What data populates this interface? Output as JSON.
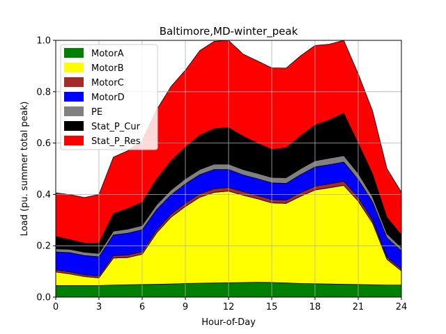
{
  "chart_data": {
    "type": "area",
    "stacked": true,
    "title": "Baltimore,MD-winter_peak",
    "xlabel": "Hour-of-Day",
    "ylabel": "Load (pu. summer total peak)",
    "xlim": [
      0,
      24
    ],
    "ylim": [
      0,
      1.0
    ],
    "xticks": [
      0,
      3,
      6,
      9,
      12,
      15,
      18,
      21,
      24
    ],
    "yticks": [
      0.0,
      0.2,
      0.4,
      0.6,
      0.8,
      1.0
    ],
    "xtick_labels": [
      "0",
      "3",
      "6",
      "9",
      "12",
      "15",
      "18",
      "21",
      "24"
    ],
    "ytick_labels": [
      "0.0",
      "0.2",
      "0.4",
      "0.6",
      "0.8",
      "1.0"
    ],
    "grid": true,
    "legend_position": "upper-left",
    "x": [
      0,
      1,
      2,
      3,
      4,
      5,
      6,
      7,
      8,
      9,
      10,
      11,
      12,
      13,
      14,
      15,
      16,
      17,
      18,
      19,
      20,
      21,
      22,
      23,
      24
    ],
    "series": [
      {
        "name": "MotorA",
        "color": "#008000",
        "values": [
          0.045,
          0.045,
          0.045,
          0.045,
          0.047,
          0.048,
          0.049,
          0.05,
          0.051,
          0.053,
          0.054,
          0.055,
          0.056,
          0.057,
          0.058,
          0.057,
          0.055,
          0.053,
          0.052,
          0.051,
          0.05,
          0.049,
          0.048,
          0.047,
          0.047
        ]
      },
      {
        "name": "MotorB",
        "color": "#ffff00",
        "values": [
          0.053,
          0.045,
          0.035,
          0.03,
          0.105,
          0.106,
          0.118,
          0.2,
          0.26,
          0.3,
          0.335,
          0.353,
          0.357,
          0.34,
          0.325,
          0.31,
          0.31,
          0.34,
          0.365,
          0.375,
          0.385,
          0.325,
          0.24,
          0.1,
          0.055
        ]
      },
      {
        "name": "MotorC",
        "color": "#a52a2a",
        "values": [
          0.008,
          0.008,
          0.007,
          0.007,
          0.01,
          0.01,
          0.01,
          0.011,
          0.012,
          0.013,
          0.013,
          0.014,
          0.014,
          0.014,
          0.013,
          0.013,
          0.013,
          0.014,
          0.015,
          0.015,
          0.016,
          0.014,
          0.012,
          0.009,
          0.008
        ]
      },
      {
        "name": "MotorD",
        "color": "#0000ff",
        "values": [
          0.07,
          0.075,
          0.075,
          0.075,
          0.08,
          0.085,
          0.085,
          0.08,
          0.075,
          0.075,
          0.075,
          0.075,
          0.07,
          0.065,
          0.065,
          0.065,
          0.065,
          0.07,
          0.075,
          0.075,
          0.075,
          0.07,
          0.07,
          0.075,
          0.07
        ]
      },
      {
        "name": "PE",
        "color": "#808080",
        "values": [
          0.012,
          0.013,
          0.013,
          0.013,
          0.015,
          0.016,
          0.017,
          0.018,
          0.019,
          0.02,
          0.02,
          0.021,
          0.021,
          0.021,
          0.021,
          0.021,
          0.022,
          0.023,
          0.024,
          0.025,
          0.025,
          0.024,
          0.02,
          0.016,
          0.013
        ]
      },
      {
        "name": "Stat_P_Cur",
        "color": "#000000",
        "values": [
          0.048,
          0.038,
          0.035,
          0.04,
          0.068,
          0.08,
          0.09,
          0.1,
          0.113,
          0.123,
          0.133,
          0.138,
          0.142,
          0.13,
          0.118,
          0.109,
          0.117,
          0.128,
          0.139,
          0.149,
          0.165,
          0.118,
          0.09,
          0.063,
          0.05
        ]
      },
      {
        "name": "Stat_P_Res",
        "color": "#ff0000",
        "values": [
          0.17,
          0.175,
          0.178,
          0.19,
          0.22,
          0.225,
          0.24,
          0.27,
          0.29,
          0.3,
          0.33,
          0.34,
          0.34,
          0.32,
          0.32,
          0.318,
          0.31,
          0.312,
          0.31,
          0.295,
          0.284,
          0.27,
          0.245,
          0.19,
          0.166
        ]
      }
    ]
  }
}
